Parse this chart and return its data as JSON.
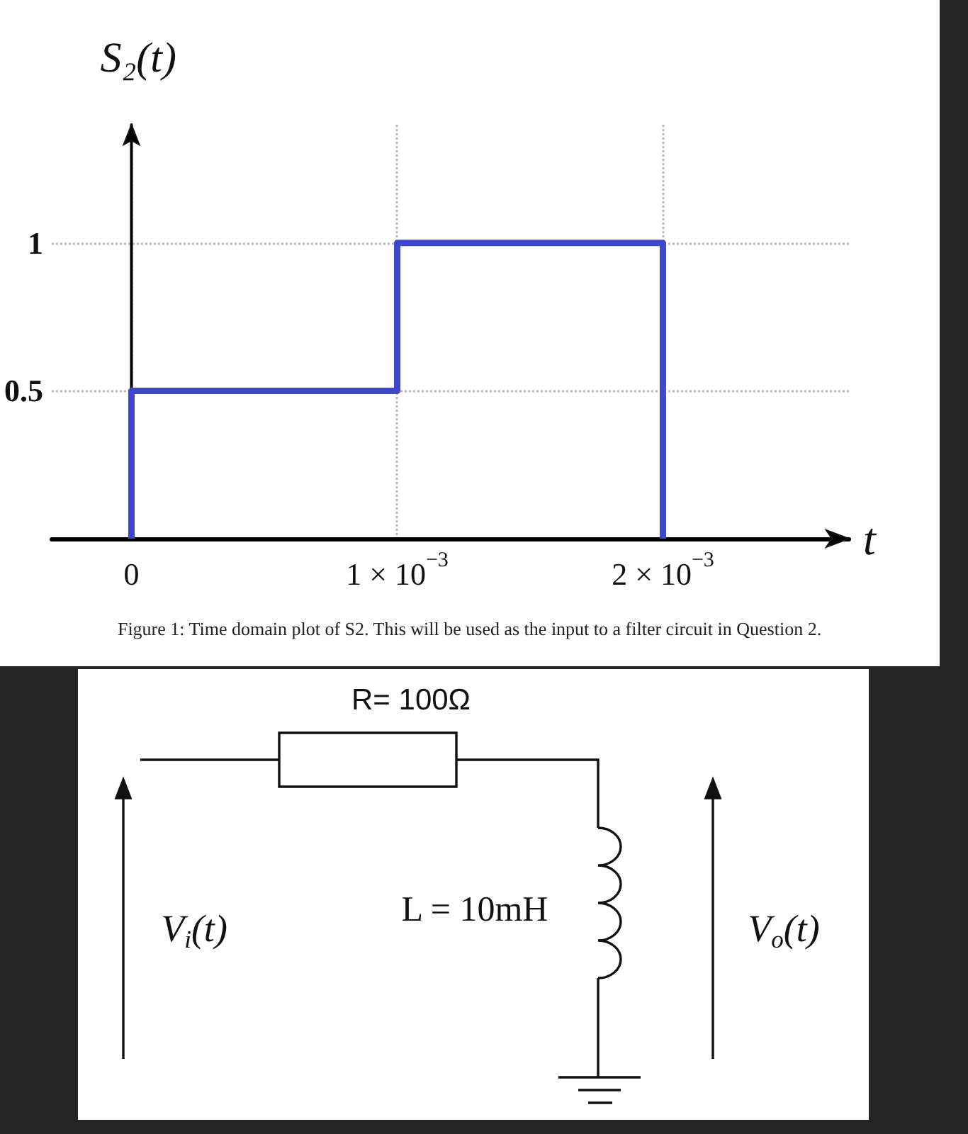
{
  "chart_data": [
    {
      "type": "line",
      "xlabel": "t",
      "ylabel": "S₂(t)",
      "x": [
        0,
        0,
        0.001,
        0.001,
        0.002,
        0.002
      ],
      "values": [
        0,
        0.5,
        0.5,
        1,
        1,
        0
      ],
      "color": "#3f48cc",
      "xlim": [
        -0.0003,
        0.0027
      ],
      "xticks": [
        0,
        {
          "value": 0.001,
          "label": "1 × 10$^{−3}$"
        },
        {
          "value": 0.002,
          "label": "2 × 10$^{−3}$"
        }
      ],
      "ylim": [
        0,
        1.4
      ],
      "yticks": [
        0.5,
        1
      ],
      "grid": true,
      "marker": "none",
      "line_style": "solid",
      "annotations": [
        "Figure 1: Time domain plot of S2. This will be used as the input to a filter circuit in Question 2."
      ]
    },
    {
      "type": "other",
      "annotations": [
        "R= 100Ω",
        "L = 10mH",
        "V$_{i}$(t)",
        "V$_{o}$(t)"
      ]
    }
  ]
}
